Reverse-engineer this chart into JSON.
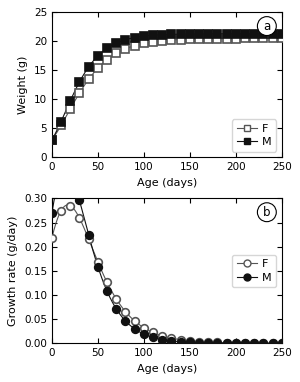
{
  "title_a": "a",
  "title_b": "b",
  "xlabel": "Age (days)",
  "ylabel_a": "Weight (g)",
  "ylabel_b": "Growth rate (g/day)",
  "xlim": [
    0,
    250
  ],
  "ylim_a": [
    0,
    25
  ],
  "ylim_b": [
    0,
    0.3
  ],
  "yticks_a": [
    0,
    5,
    10,
    15,
    20,
    25
  ],
  "yticks_b": [
    0,
    0.05,
    0.1,
    0.15,
    0.2,
    0.25,
    0.3
  ],
  "xticks": [
    0,
    50,
    100,
    150,
    200,
    250
  ],
  "gompertz_F": {
    "A": 20.5,
    "b": 1.93,
    "k": 0.038
  },
  "gompertz_M": {
    "A": 21.3,
    "b": 1.97,
    "k": 0.046
  },
  "marker_interval": 10,
  "color_F": "#555555",
  "color_M": "#111111",
  "background_color": "#ffffff",
  "legend_F": "F",
  "legend_M": "M",
  "fig_width": 3.0,
  "fig_height": 3.82,
  "dpi": 100
}
